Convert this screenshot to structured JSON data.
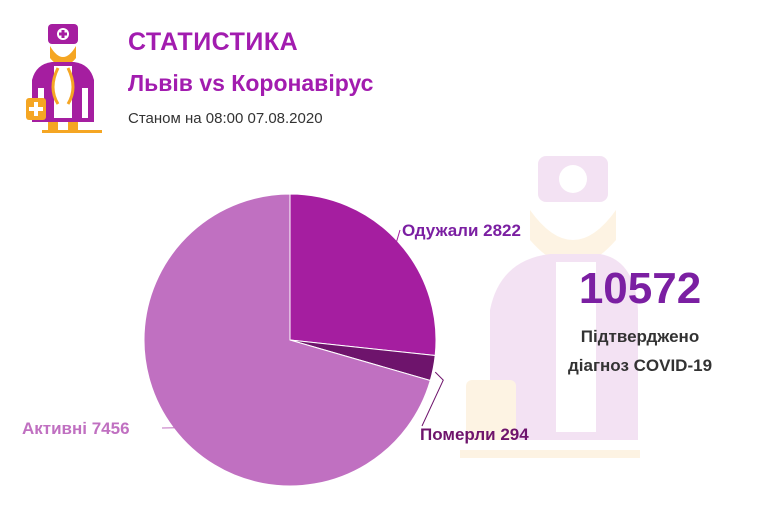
{
  "header": {
    "title": "СТАТИСТИКА",
    "subtitle": "Львів vs Коронавірус",
    "date": "Станом на 08:00 07.08.2020"
  },
  "summary": {
    "total": "10572",
    "caption_line1": "Підтверджено",
    "caption_line2": "діагноз COVID-19"
  },
  "icons": {
    "logo": "doctor-icon",
    "watermark": "doctor-icon"
  },
  "chart_data": {
    "type": "pie",
    "slices": [
      {
        "name": "Одужали",
        "value": 2822,
        "label": "Одужали 2822",
        "color": "#a51ea0"
      },
      {
        "name": "Померли",
        "value": 294,
        "label": "Померли 294",
        "color": "#6e146c"
      },
      {
        "name": "Активні",
        "value": 7456,
        "label": "Активні 7456",
        "color": "#c070c1"
      }
    ]
  }
}
